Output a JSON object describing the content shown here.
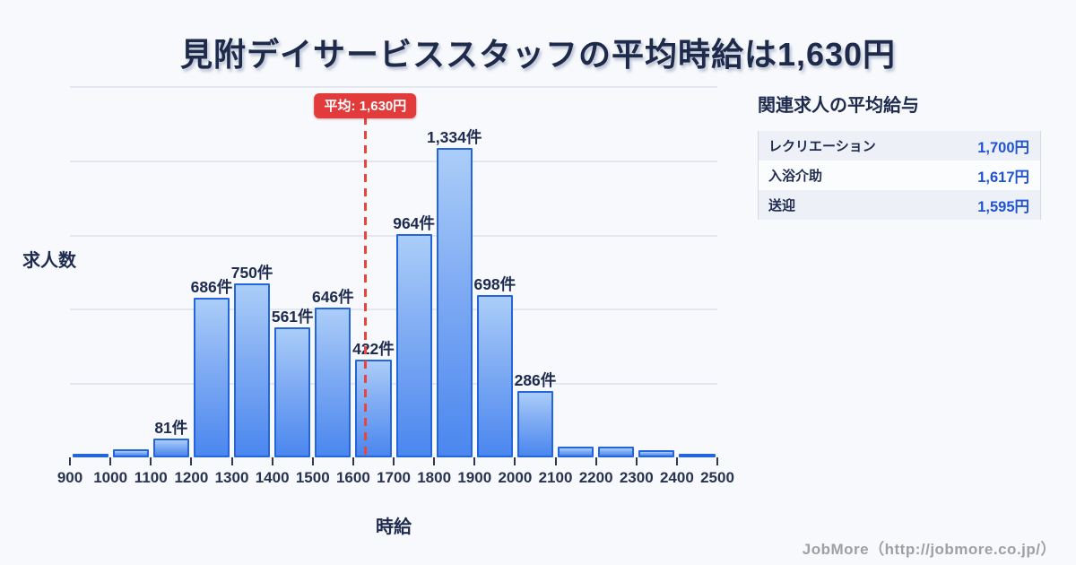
{
  "title": "見附デイサービススタッフの平均時給は1,630円",
  "chart_data": {
    "type": "bar",
    "title": "見附デイサービススタッフの平均時給は1,630円",
    "xlabel": "時給",
    "ylabel": "求人数",
    "ylim": [
      0,
      1600
    ],
    "grid": true,
    "legend": "none",
    "x_tick_labels": [
      "900",
      "1000",
      "1100",
      "1200",
      "1300",
      "1400",
      "1500",
      "1600",
      "1700",
      "1800",
      "1900",
      "2000",
      "2100",
      "2200",
      "2300",
      "2400",
      "2500"
    ],
    "bin_size": 100,
    "bars": [
      {
        "range": "900-1000",
        "value": 10,
        "label": ""
      },
      {
        "range": "1000-1100",
        "value": 35,
        "label": ""
      },
      {
        "range": "1100-1200",
        "value": 81,
        "label": "81件"
      },
      {
        "range": "1200-1300",
        "value": 686,
        "label": "686件"
      },
      {
        "range": "1300-1400",
        "value": 750,
        "label": "750件"
      },
      {
        "range": "1400-1500",
        "value": 561,
        "label": "561件"
      },
      {
        "range": "1500-1600",
        "value": 646,
        "label": "646件"
      },
      {
        "range": "1600-1700",
        "value": 422,
        "label": "422件"
      },
      {
        "range": "1700-1800",
        "value": 964,
        "label": "964件"
      },
      {
        "range": "1800-1900",
        "value": 1334,
        "label": "1,334件"
      },
      {
        "range": "1900-2000",
        "value": 698,
        "label": "698件"
      },
      {
        "range": "2000-2100",
        "value": 286,
        "label": "286件"
      },
      {
        "range": "2100-2200",
        "value": 45,
        "label": ""
      },
      {
        "range": "2200-2300",
        "value": 45,
        "label": ""
      },
      {
        "range": "2300-2400",
        "value": 30,
        "label": ""
      },
      {
        "range": "2400-2500",
        "value": 15,
        "label": ""
      }
    ],
    "average": {
      "value": 1630,
      "badge_label": "平均: 1,630円"
    }
  },
  "side_panel": {
    "title": "関連求人の平均給与",
    "rows": [
      {
        "label": "レクリエーション",
        "value": "1,700円"
      },
      {
        "label": "入浴介助",
        "value": "1,617円"
      },
      {
        "label": "送迎",
        "value": "1,595円"
      }
    ]
  },
  "footer": {
    "credit": "JobMore（http://jobmore.co.jp/）"
  },
  "colors": {
    "background": "#f7f9fc",
    "text_dark": "#1e2b4e",
    "bar_border": "#2565db",
    "bar_gradient_top": "#abcdf8",
    "bar_gradient_bottom": "#4b87ef",
    "average_red": "#e23b3b",
    "value_blue": "#2053d4",
    "gridline": "#e4e7ef",
    "credit_gray": "#9fa0a3"
  }
}
